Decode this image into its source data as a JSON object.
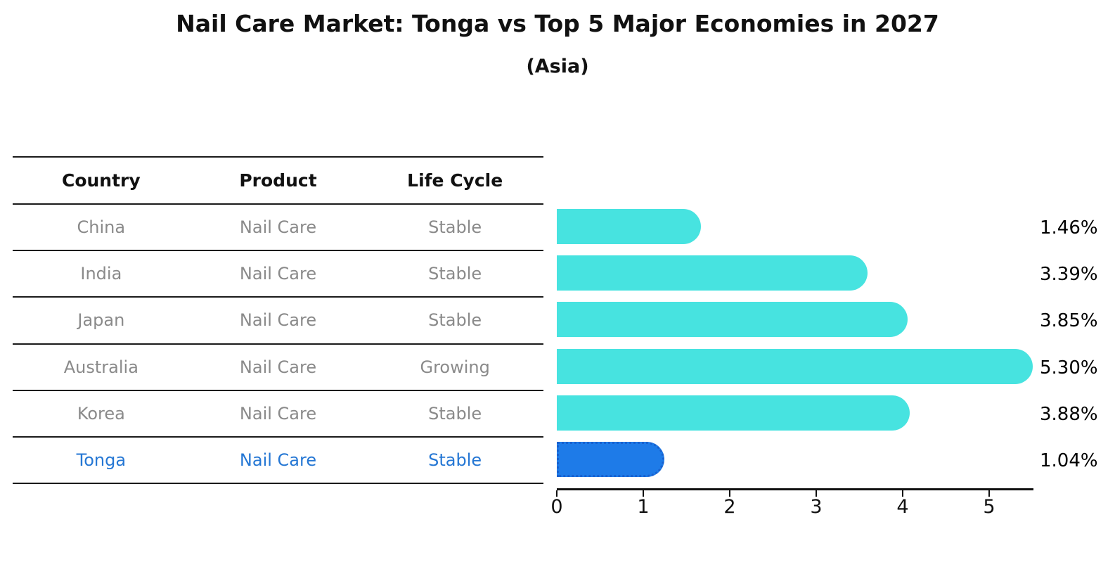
{
  "header": {
    "title": "Nail Care Market: Tonga vs Top 5 Major Economies in 2027",
    "subtitle": "(Asia)"
  },
  "table": {
    "columns": [
      "Country",
      "Product",
      "Life Cycle"
    ],
    "rows": [
      {
        "country": "China",
        "product": "Nail Care",
        "life_cycle": "Stable",
        "highlight": false
      },
      {
        "country": "India",
        "product": "Nail Care",
        "life_cycle": "Stable",
        "highlight": false
      },
      {
        "country": "Japan",
        "product": "Nail Care",
        "life_cycle": "Stable",
        "highlight": false
      },
      {
        "country": "Australia",
        "product": "Nail Care",
        "life_cycle": "Growing",
        "highlight": false
      },
      {
        "country": "Korea",
        "product": "Nail Care",
        "life_cycle": "Stable",
        "highlight": false
      },
      {
        "country": "Tonga",
        "product": "Nail Care",
        "life_cycle": "Stable",
        "highlight": true
      }
    ]
  },
  "chart_data": {
    "type": "bar",
    "orientation": "horizontal",
    "title": "Nail Care Market: Tonga vs Top 5 Major Economies in 2027",
    "subtitle": "(Asia)",
    "categories": [
      "China",
      "India",
      "Japan",
      "Australia",
      "Korea",
      "Tonga"
    ],
    "values": [
      1.46,
      3.39,
      3.85,
      5.3,
      3.88,
      1.04
    ],
    "value_labels": [
      "1.46%",
      "3.39%",
      "3.85%",
      "5.30%",
      "3.88%",
      "1.04%"
    ],
    "x_ticks": [
      "0",
      "1",
      "2",
      "3",
      "4",
      "5"
    ],
    "xlim": [
      0,
      5.5
    ],
    "grid": false,
    "legend": false,
    "bar_color": "#47e3e0",
    "highlight_index": 5,
    "highlight_color": "#1e7be8",
    "highlight_border_color": "#1861cf"
  },
  "colors": {
    "text_primary": "#111111",
    "text_muted": "#8a8a8a",
    "highlight_text": "#2577d4",
    "axis": "#111111"
  }
}
